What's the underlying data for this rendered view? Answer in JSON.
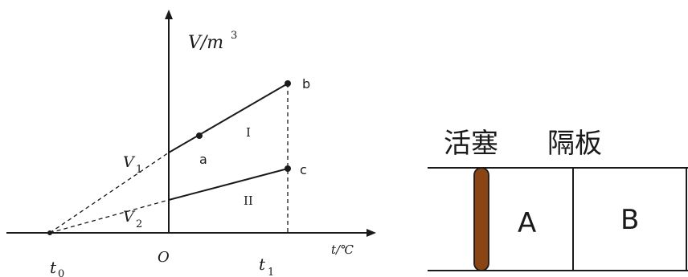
{
  "graph": {
    "y_axis_label": "V/m",
    "y_axis_exp": "3",
    "x_axis_label": "t/℃",
    "origin": "O",
    "t0_label": "t",
    "t0_sub": "0",
    "t1_label": "t",
    "t1_sub": "1",
    "v1_label": "V",
    "v1_sub": "1",
    "v2_label": "V",
    "v2_sub": "2",
    "point_a": "a",
    "point_b": "b",
    "point_c": "c",
    "region_1": "I",
    "region_2": "II"
  },
  "apparatus": {
    "piston_label": "活塞",
    "divider_label": "隔板",
    "chamber_a": "A",
    "chamber_b": "B",
    "piston_color": "#8b4513"
  }
}
